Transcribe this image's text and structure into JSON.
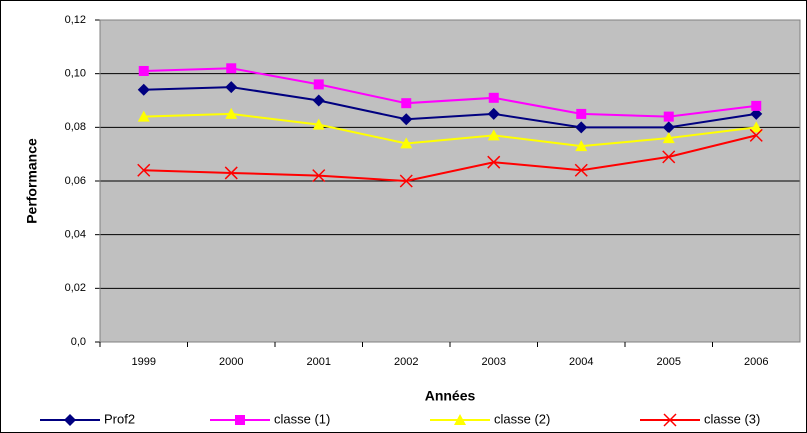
{
  "chart_data": {
    "type": "line",
    "x_label": "Années",
    "y_label": "Performance",
    "categories": [
      "1999",
      "2000",
      "2001",
      "2002",
      "2003",
      "2004",
      "2005",
      "2006"
    ],
    "series": [
      {
        "name": "Prof2",
        "color": "#000080",
        "marker": "diamond",
        "values": [
          0.094,
          0.095,
          0.09,
          0.083,
          0.085,
          0.08,
          0.08,
          0.085
        ]
      },
      {
        "name": "classe (1)",
        "color": "#ff00ff",
        "marker": "square",
        "values": [
          0.101,
          0.102,
          0.096,
          0.089,
          0.091,
          0.085,
          0.084,
          0.088
        ]
      },
      {
        "name": "classe (2)",
        "color": "#ffff00",
        "marker": "triangle",
        "values": [
          0.084,
          0.085,
          0.081,
          0.074,
          0.077,
          0.073,
          0.076,
          0.08
        ]
      },
      {
        "name": "classe (3)",
        "color": "#ff0000",
        "marker": "x",
        "values": [
          0.064,
          0.063,
          0.062,
          0.06,
          0.067,
          0.064,
          0.069,
          0.077
        ]
      }
    ],
    "ylim": [
      0,
      0.12
    ],
    "yticks": [
      {
        "value": 0,
        "label": "0,0"
      },
      {
        "value": 0.02,
        "label": "0,02"
      },
      {
        "value": 0.04,
        "label": "0,04"
      },
      {
        "value": 0.06,
        "label": "0,06"
      },
      {
        "value": 0.08,
        "label": "0,08"
      },
      {
        "value": 0.1,
        "label": "0,10"
      },
      {
        "value": 0.12,
        "label": "0,12"
      }
    ],
    "grid": true,
    "plot_background": "#c0c0c0",
    "legend": "bottom"
  }
}
